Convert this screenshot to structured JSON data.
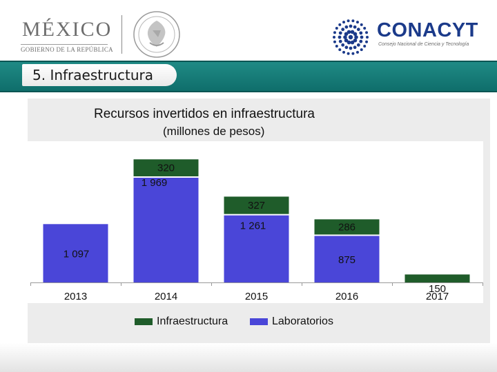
{
  "header": {
    "mexico_text": "MÉXICO",
    "mexico_sub": "GOBIERNO DE LA REPÚBLICA",
    "conacyt_text": "CONACYT",
    "conacyt_sub": "Consejo Nacional de Ciencia y Tecnología"
  },
  "banner": {
    "title": "5. Infraestructura"
  },
  "colors": {
    "infraestructura": "#1f5c2a",
    "laboratorios": "#4a46d8",
    "banner": "#1a7f7b",
    "conacyt": "#1b3a8a"
  },
  "chart_data": {
    "type": "bar",
    "stacked": true,
    "title": "Recursos invertidos en infraestructura",
    "subtitle": "(millones de pesos)",
    "categories": [
      "2013",
      "2014",
      "2015",
      "2016",
      "2017"
    ],
    "series": [
      {
        "name": "Laboratorios",
        "values": [
          1097,
          1969,
          1261,
          875,
          null
        ],
        "labels": [
          "1 097",
          "1 969",
          "1 261",
          "875",
          ""
        ]
      },
      {
        "name": "Infraestructura",
        "values": [
          null,
          320,
          327,
          286,
          150
        ],
        "labels": [
          "",
          "320",
          "327",
          "286",
          "150"
        ]
      }
    ],
    "legend": [
      "Infraestructura",
      "Laboratorios"
    ],
    "legend_position": "bottom",
    "grid": false
  }
}
